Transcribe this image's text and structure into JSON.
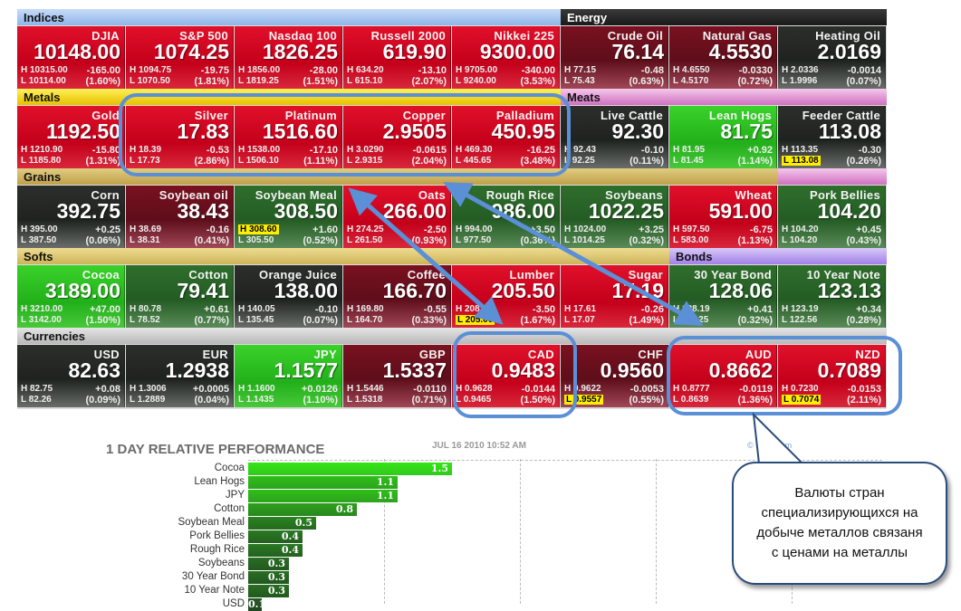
{
  "sections": [
    {
      "label": "Indices",
      "col": 0,
      "span": 5,
      "row": 0,
      "bg": "linear-gradient(#c8dcf8,#8fb4ea)",
      "light": false
    },
    {
      "label": "Energy",
      "col": 5,
      "span": 3,
      "row": 0,
      "bg": "linear-gradient(#3a3a3a,#1a1a1a)",
      "light": true
    },
    {
      "label": "Metals",
      "col": 0,
      "span": 5,
      "row": 1,
      "bg": "linear-gradient(#fff05a,#e6c000)",
      "light": false
    },
    {
      "label": "Meats",
      "col": 5,
      "span": 3,
      "row": 1,
      "bg": "linear-gradient(#f4c8ea,#d070c0)",
      "light": false
    },
    {
      "label": "Grains",
      "col": 0,
      "span": 7,
      "row": 2,
      "bg": "linear-gradient(#e0cc80,#c0a04a)",
      "light": false
    },
    {
      "label": "",
      "col": 7,
      "span": 1,
      "row": 2,
      "bg": "linear-gradient(#f4c8ea,#d070c0)",
      "light": false
    },
    {
      "label": "Softs",
      "col": 0,
      "span": 6,
      "row": 3,
      "bg": "linear-gradient(#eedc90,#cdb45a)",
      "light": false
    },
    {
      "label": "Bonds",
      "col": 6,
      "span": 2,
      "row": 3,
      "bg": "linear-gradient(#d8c8f8,#a080e8)",
      "light": false
    },
    {
      "label": "Currencies",
      "col": 0,
      "span": 8,
      "row": 4,
      "bg": "linear-gradient(#e4e4e4,#b8b8b8)",
      "light": false
    }
  ],
  "tiles": [
    [
      {
        "name": "DJIA",
        "price": "10148.00",
        "high": "H 10315.00",
        "low": "L 10114.00",
        "change": "-165.00",
        "pct": "(1.60%)",
        "tone": "r"
      },
      {
        "name": "S&P 500",
        "price": "1074.25",
        "high": "H 1094.75",
        "low": "L 1070.50",
        "change": "-19.75",
        "pct": "(1.81%)",
        "tone": "r"
      },
      {
        "name": "Nasdaq 100",
        "price": "1826.25",
        "high": "H 1856.00",
        "low": "L 1819.25",
        "change": "-28.00",
        "pct": "(1.51%)",
        "tone": "r"
      },
      {
        "name": "Russell 2000",
        "price": "619.90",
        "high": "H 634.20",
        "low": "L 615.10",
        "change": "-13.10",
        "pct": "(2.07%)",
        "tone": "r"
      },
      {
        "name": "Nikkei 225",
        "price": "9300.00",
        "high": "H 9705.00",
        "low": "L 9240.00",
        "change": "-340.00",
        "pct": "(3.53%)",
        "tone": "r"
      },
      {
        "name": "Crude Oil",
        "price": "76.14",
        "high": "H 77.15",
        "low": "L 75.43",
        "change": "-0.48",
        "pct": "(0.63%)",
        "tone": "dr"
      },
      {
        "name": "Natural Gas",
        "price": "4.5530",
        "high": "H 4.6550",
        "low": "L 4.5170",
        "change": "-0.0330",
        "pct": "(0.72%)",
        "tone": "dr"
      },
      {
        "name": "Heating Oil",
        "price": "2.0169",
        "high": "H 2.0336",
        "low": "L 1.9996",
        "change": "-0.0014",
        "pct": "(0.07%)",
        "tone": "k"
      }
    ],
    [
      {
        "name": "Gold",
        "price": "1192.50",
        "high": "H 1210.90",
        "low": "L 1185.80",
        "change": "-15.80",
        "pct": "(1.31%)",
        "tone": "r"
      },
      {
        "name": "Silver",
        "price": "17.83",
        "high": "H 18.39",
        "low": "L 17.73",
        "change": "-0.53",
        "pct": "(2.86%)",
        "tone": "r"
      },
      {
        "name": "Platinum",
        "price": "1516.60",
        "high": "H 1538.00",
        "low": "L 1506.10",
        "change": "-17.10",
        "pct": "(1.11%)",
        "tone": "r"
      },
      {
        "name": "Copper",
        "price": "2.9505",
        "high": "H 3.0290",
        "low": "L 2.9315",
        "change": "-0.0615",
        "pct": "(2.04%)",
        "tone": "r"
      },
      {
        "name": "Palladium",
        "price": "450.95",
        "high": "H 469.30",
        "low": "L 445.65",
        "change": "-16.25",
        "pct": "(3.48%)",
        "tone": "r"
      },
      {
        "name": "Live Cattle",
        "price": "92.30",
        "high": "H 92.43",
        "low": "L 92.25",
        "change": "-0.10",
        "pct": "(0.11%)",
        "tone": "k"
      },
      {
        "name": "Lean Hogs",
        "price": "81.75",
        "high": "H 81.95",
        "low": "L 81.45",
        "change": "+0.92",
        "pct": "(1.14%)",
        "tone": "G"
      },
      {
        "name": "Feeder Cattle",
        "price": "113.08",
        "high": "H 113.35",
        "low": "L 113.08",
        "change": "-0.30",
        "pct": "(0.26%)",
        "tone": "k",
        "mark": "low"
      }
    ],
    [
      {
        "name": "Corn",
        "price": "392.75",
        "high": "H 395.00",
        "low": "L 387.50",
        "change": "+0.25",
        "pct": "(0.06%)",
        "tone": "k"
      },
      {
        "name": "Soybean oil",
        "price": "38.43",
        "high": "H 38.69",
        "low": "L 38.31",
        "change": "-0.16",
        "pct": "(0.41%)",
        "tone": "dr"
      },
      {
        "name": "Soybean Meal",
        "price": "308.50",
        "high": "H 308.60",
        "low": "L 305.50",
        "change": "+1.60",
        "pct": "(0.52%)",
        "tone": "g",
        "mark": "high"
      },
      {
        "name": "Oats",
        "price": "266.00",
        "high": "H 274.25",
        "low": "L 261.50",
        "change": "-2.50",
        "pct": "(0.93%)",
        "tone": "r"
      },
      {
        "name": "Rough Rice",
        "price": "986.00",
        "high": "H 994.00",
        "low": "L 977.50",
        "change": "+3.50",
        "pct": "(0.36%)",
        "tone": "g"
      },
      {
        "name": "Soybeans",
        "price": "1022.25",
        "high": "H 1024.00",
        "low": "L 1014.25",
        "change": "+3.25",
        "pct": "(0.32%)",
        "tone": "g"
      },
      {
        "name": "Wheat",
        "price": "591.00",
        "high": "H 597.50",
        "low": "L 583.00",
        "change": "-6.75",
        "pct": "(1.13%)",
        "tone": "r"
      },
      {
        "name": "Pork Bellies",
        "price": "104.20",
        "high": "H 104.20",
        "low": "L 104.20",
        "change": "+0.45",
        "pct": "(0.43%)",
        "tone": "g"
      }
    ],
    [
      {
        "name": "Cocoa",
        "price": "3189.00",
        "high": "H 3210.00",
        "low": "L 3142.00",
        "change": "+47.00",
        "pct": "(1.50%)",
        "tone": "G"
      },
      {
        "name": "Cotton",
        "price": "79.41",
        "high": "H 80.78",
        "low": "L 78.52",
        "change": "+0.61",
        "pct": "(0.77%)",
        "tone": "g"
      },
      {
        "name": "Orange Juice",
        "price": "138.00",
        "high": "H 140.05",
        "low": "L 135.45",
        "change": "-0.10",
        "pct": "(0.07%)",
        "tone": "k"
      },
      {
        "name": "Coffee",
        "price": "166.70",
        "high": "H 169.80",
        "low": "L 164.70",
        "change": "-0.55",
        "pct": "(0.33%)",
        "tone": "dr"
      },
      {
        "name": "Lumber",
        "price": "205.50",
        "high": "H 208.30",
        "low": "L 205.00",
        "change": "-3.50",
        "pct": "(1.67%)",
        "tone": "r",
        "mark": "low"
      },
      {
        "name": "Sugar",
        "price": "17.19",
        "high": "H 17.61",
        "low": "L 17.07",
        "change": "-0.26",
        "pct": "(1.49%)",
        "tone": "r"
      },
      {
        "name": "30 Year Bond",
        "price": "128.06",
        "high": "H 128.19",
        "low": "L 127.25",
        "change": "+0.41",
        "pct": "(0.32%)",
        "tone": "g"
      },
      {
        "name": "10 Year Note",
        "price": "123.13",
        "high": "H 123.19",
        "low": "L 122.56",
        "change": "+0.34",
        "pct": "(0.28%)",
        "tone": "g"
      }
    ],
    [
      {
        "name": "USD",
        "price": "82.63",
        "high": "H 82.75",
        "low": "L 82.26",
        "change": "+0.08",
        "pct": "(0.09%)",
        "tone": "k"
      },
      {
        "name": "EUR",
        "price": "1.2938",
        "high": "H 1.3006",
        "low": "L 1.2889",
        "change": "+0.0005",
        "pct": "(0.04%)",
        "tone": "k"
      },
      {
        "name": "JPY",
        "price": "1.1577",
        "high": "H 1.1600",
        "low": "L 1.1435",
        "change": "+0.0126",
        "pct": "(1.10%)",
        "tone": "G"
      },
      {
        "name": "GBP",
        "price": "1.5337",
        "high": "H 1.5446",
        "low": "L 1.5318",
        "change": "-0.0110",
        "pct": "(0.71%)",
        "tone": "dr"
      },
      {
        "name": "CAD",
        "price": "0.9483",
        "high": "H 0.9628",
        "low": "L 0.9465",
        "change": "-0.0144",
        "pct": "(1.50%)",
        "tone": "r"
      },
      {
        "name": "CHF",
        "price": "0.9560",
        "high": "H 0.9622",
        "low": "L 0.9557",
        "change": "-0.0053",
        "pct": "(0.55%)",
        "tone": "dr",
        "mark": "low"
      },
      {
        "name": "AUD",
        "price": "0.8662",
        "high": "H 0.8777",
        "low": "L 0.8639",
        "change": "-0.0119",
        "pct": "(1.36%)",
        "tone": "r"
      },
      {
        "name": "NZD",
        "price": "0.7089",
        "high": "H 0.7230",
        "low": "L 0.7074",
        "change": "-0.0153",
        "pct": "(2.11%)",
        "tone": "r",
        "mark": "low"
      }
    ]
  ],
  "performance": {
    "title": "1 DAY RELATIVE PERFORMANCE",
    "timestamp": "JUL 16 2010 10:52 AM",
    "credit": "© finviz.com",
    "chart_data": {
      "type": "bar",
      "orientation": "horizontal",
      "categories": [
        "Cocoa",
        "Lean Hogs",
        "JPY",
        "Cotton",
        "Soybean Meal",
        "Pork Bellies",
        "Rough Rice",
        "Soybeans",
        "30 Year Bond",
        "10 Year Note",
        "USD"
      ],
      "values": [
        1.5,
        1.1,
        1.1,
        0.8,
        0.5,
        0.4,
        0.4,
        0.3,
        0.3,
        0.3,
        0.1
      ],
      "labels": [
        "1.5",
        "1.1",
        "1.1",
        "0.8",
        "0.5",
        "0.4",
        "0.4",
        "0.3",
        "0.3",
        "0.3",
        "0.1"
      ]
    }
  },
  "callout": {
    "text": "Валюты стран специализирующихся на добыче металлов связаня с ценами на металлы"
  },
  "colors": {
    "annotation": "#5b8fd6",
    "tone_r": "#d0061e",
    "tone_G": "#2cc020"
  }
}
